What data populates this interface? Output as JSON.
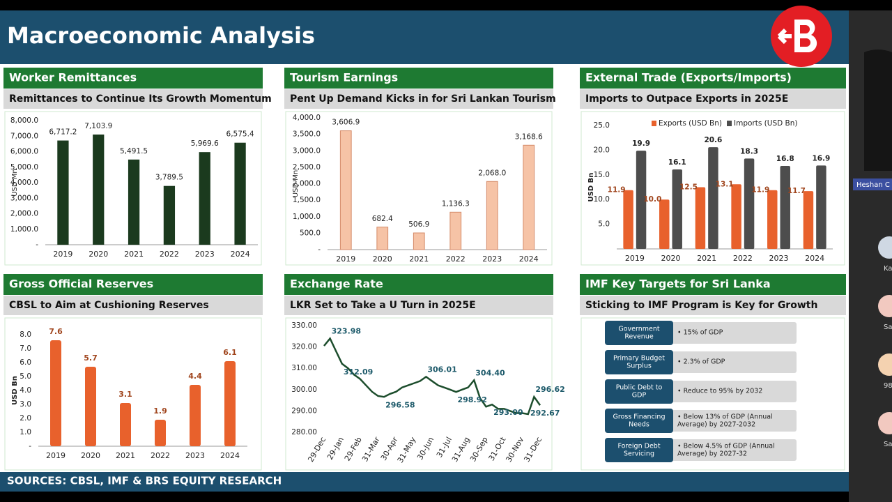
{
  "header": {
    "title": "Macroeconomic Analysis"
  },
  "footer": {
    "sources": "SOURCES: CBSL, IMF & BRS EQUITY RESEARCH"
  },
  "sidebar": {
    "presenter": "Heshan C",
    "participants": [
      "Ka",
      "Sa",
      "98",
      "Sa"
    ]
  },
  "chart_data": [
    {
      "type": "bar",
      "title": "Worker Remittances",
      "subtitle": "Remittances to Continue Its Growth Momentum",
      "y_label": "USD Mn",
      "categories": [
        "2019",
        "2020",
        "2021",
        "2022",
        "2023",
        "2024"
      ],
      "values": [
        6717.2,
        7103.9,
        5491.5,
        3789.5,
        5969.6,
        6575.4
      ],
      "value_labels": [
        "6,717.2",
        "7,103.9",
        "5,491.5",
        "3,789.5",
        "5,969.6",
        "6,575.4"
      ],
      "color": "#1b3a1e",
      "ylim": [
        0,
        8000
      ],
      "yticks": [
        {
          "value": 0,
          "label": "-"
        },
        {
          "value": 1000,
          "label": "1,000.0"
        },
        {
          "value": 2000,
          "label": "2,000.0"
        },
        {
          "value": 3000,
          "label": "3,000.0"
        },
        {
          "value": 4000,
          "label": "4,000.0"
        },
        {
          "value": 5000,
          "label": "5,000.0"
        },
        {
          "value": 6000,
          "label": "6,000.0"
        },
        {
          "value": 7000,
          "label": "7,000.0"
        },
        {
          "value": 8000,
          "label": "8,000.0"
        }
      ]
    },
    {
      "type": "bar",
      "title": "Tourism Earnings",
      "subtitle": "Pent Up Demand Kicks in for Sri Lankan Tourism",
      "y_label": "USD Mn",
      "categories": [
        "2019",
        "2020",
        "2021",
        "2022",
        "2023",
        "2024"
      ],
      "values": [
        3606.9,
        682.4,
        506.9,
        1136.3,
        2068.0,
        3168.6
      ],
      "value_labels": [
        "3,606.9",
        "682.4",
        "506.9",
        "1,136.3",
        "2,068.0",
        "3,168.6"
      ],
      "color": "#f6c3a6",
      "ylim": [
        0,
        4000
      ],
      "yticks": [
        {
          "value": 0,
          "label": "-"
        },
        {
          "value": 500,
          "label": "500.0"
        },
        {
          "value": 1000,
          "label": "1,000.0"
        },
        {
          "value": 1500,
          "label": "1,500.0"
        },
        {
          "value": 2000,
          "label": "2,000.0"
        },
        {
          "value": 2500,
          "label": "2,500.0"
        },
        {
          "value": 3000,
          "label": "3,000.0"
        },
        {
          "value": 3500,
          "label": "3,500.0"
        },
        {
          "value": 4000,
          "label": "4,000.0"
        }
      ]
    },
    {
      "type": "bar",
      "title": "External Trade (Exports/Imports)",
      "subtitle": "Imports to Outpace Exports in 2025E",
      "y_label": "USD Bn",
      "categories": [
        "2019",
        "2020",
        "2021",
        "2022",
        "2023",
        "2024"
      ],
      "series": [
        {
          "name": "Exports (USD Bn)",
          "color": "#e8612c",
          "values": [
            11.9,
            10.0,
            12.5,
            13.1,
            11.9,
            11.7
          ],
          "value_labels": [
            "11.9",
            "10.0",
            "12.5",
            "13.1",
            "11.9",
            "11.7"
          ]
        },
        {
          "name": "Imports (USD Bn)",
          "color": "#4d4d4d",
          "values": [
            19.9,
            16.1,
            20.6,
            18.3,
            16.8,
            16.9
          ]
        }
      ],
      "legend": "top",
      "ylim": [
        0,
        25
      ],
      "yticks": [
        {
          "value": 5,
          "label": "5.0"
        },
        {
          "value": 10,
          "label": "10.0"
        },
        {
          "value": 15,
          "label": "15.0"
        },
        {
          "value": 20,
          "label": "20.0"
        },
        {
          "value": 25,
          "label": "25.0"
        }
      ]
    },
    {
      "type": "bar",
      "title": "Gross Official Reserves",
      "subtitle": "CBSL to Aim at Cushioning Reserves",
      "y_label": "USD Bn",
      "categories": [
        "2019",
        "2020",
        "2021",
        "2022",
        "2023",
        "2024"
      ],
      "values": [
        7.6,
        5.7,
        3.1,
        1.9,
        4.4,
        6.1
      ],
      "color": "#e8612c",
      "ylim": [
        0,
        8
      ],
      "yticks": [
        {
          "value": 0,
          "label": "-"
        },
        {
          "value": 1,
          "label": "1.0"
        },
        {
          "value": 2,
          "label": "2.0"
        },
        {
          "value": 3,
          "label": "3.0"
        },
        {
          "value": 4,
          "label": "4.0"
        },
        {
          "value": 5,
          "label": "5.0"
        },
        {
          "value": 6,
          "label": "6.0"
        },
        {
          "value": 7,
          "label": "7.0"
        },
        {
          "value": 8,
          "label": "8.0"
        }
      ]
    },
    {
      "type": "line",
      "title": "Exchange Rate",
      "subtitle": "LKR Set to Take a U Turn in 2025E",
      "categories": [
        "29-Dec",
        null,
        null,
        "29-Jan",
        null,
        null,
        "29-Feb",
        null,
        null,
        "31-Mar",
        null,
        null,
        "30-Apr",
        null,
        null,
        "31-May",
        null,
        null,
        "30-Jun",
        null,
        null,
        "31-Jul",
        null,
        null,
        "31-Aug",
        null,
        null,
        "30-Sep",
        null,
        null,
        "31-Oct",
        null,
        null,
        "30-Nov",
        null,
        null,
        "31-Dec"
      ],
      "values": [
        320.5,
        323.98,
        318,
        312.09,
        310,
        307,
        305,
        302,
        299,
        297,
        296.58,
        298,
        299,
        301,
        302,
        303,
        304,
        306.01,
        304,
        302,
        301,
        300,
        298.92,
        300,
        301,
        304.4,
        296,
        292,
        293,
        291,
        291,
        290,
        289,
        289,
        288.5,
        296.62,
        292.67
      ],
      "value_labels": [
        null,
        "323.98",
        null,
        "312.09",
        null,
        null,
        null,
        null,
        null,
        null,
        "296.58",
        null,
        null,
        null,
        null,
        null,
        null,
        "306.01",
        null,
        null,
        null,
        null,
        "298.92",
        null,
        null,
        "304.40",
        null,
        null,
        "293.00",
        null,
        null,
        null,
        null,
        null,
        null,
        "296.62",
        "292.67"
      ],
      "color": "#1c4d2c",
      "ylim": [
        280,
        330
      ],
      "yticks": [
        {
          "value": 280,
          "label": "280.00"
        },
        {
          "value": 290,
          "label": "290.00"
        },
        {
          "value": 300,
          "label": "300.00"
        },
        {
          "value": 310,
          "label": "310.00"
        },
        {
          "value": 320,
          "label": "320.00"
        },
        {
          "value": 330,
          "label": "330.00"
        }
      ]
    }
  ],
  "imf": {
    "title": "IMF Key Targets for Sri Lanka",
    "subtitle": "Sticking to IMF Program is Key for Growth",
    "rows": [
      [
        "Government Revenue",
        "• 15% of GDP"
      ],
      [
        "Primary Budget Surplus",
        "• 2.3% of GDP"
      ],
      [
        "Public Debt to GDP",
        "• Reduce to 95% by 2032"
      ],
      [
        "Gross Financing Needs",
        "• Below 13% of GDP (Annual Average) by 2027-2032"
      ],
      [
        "Foreign Debt Servicing",
        "• Below 4.5% of GDP (Annual Average) by 2027-32"
      ]
    ]
  }
}
